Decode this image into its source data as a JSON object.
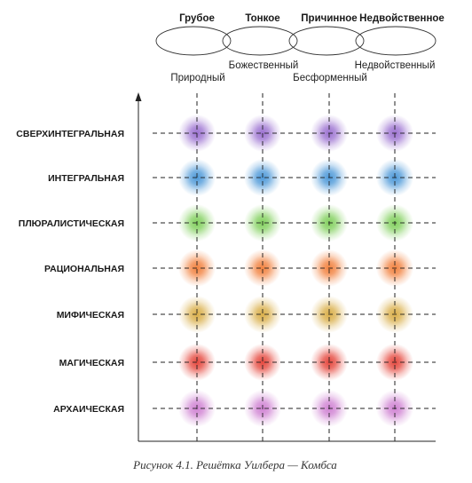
{
  "states": [
    "Грубое",
    "Тонкое",
    "Причинное",
    "Недвойственное"
  ],
  "bodies": [
    "Природный",
    "Божественный",
    "Бесформенный",
    "Недвойственный"
  ],
  "levels": [
    {
      "label": "СВЕРХИНТЕГРАЛЬНАЯ",
      "color": "#9a6fd0"
    },
    {
      "label": "ИНТЕГРАЛЬНАЯ",
      "color": "#4a97d8"
    },
    {
      "label": "ПЛЮРАЛИСТИЧЕСКАЯ",
      "color": "#7fcf5a"
    },
    {
      "label": "РАЦИОНАЛЬНАЯ",
      "color": "#f2803c"
    },
    {
      "label": "МИФИЧЕСКАЯ",
      "color": "#d9ad45"
    },
    {
      "label": "МАГИЧЕСКАЯ",
      "color": "#e5443a"
    },
    {
      "label": "АРХАИЧЕСКАЯ",
      "color": "#cf80d2"
    }
  ],
  "caption": "Рисунок 4.1. Решётка Уилбера — Комбса"
}
